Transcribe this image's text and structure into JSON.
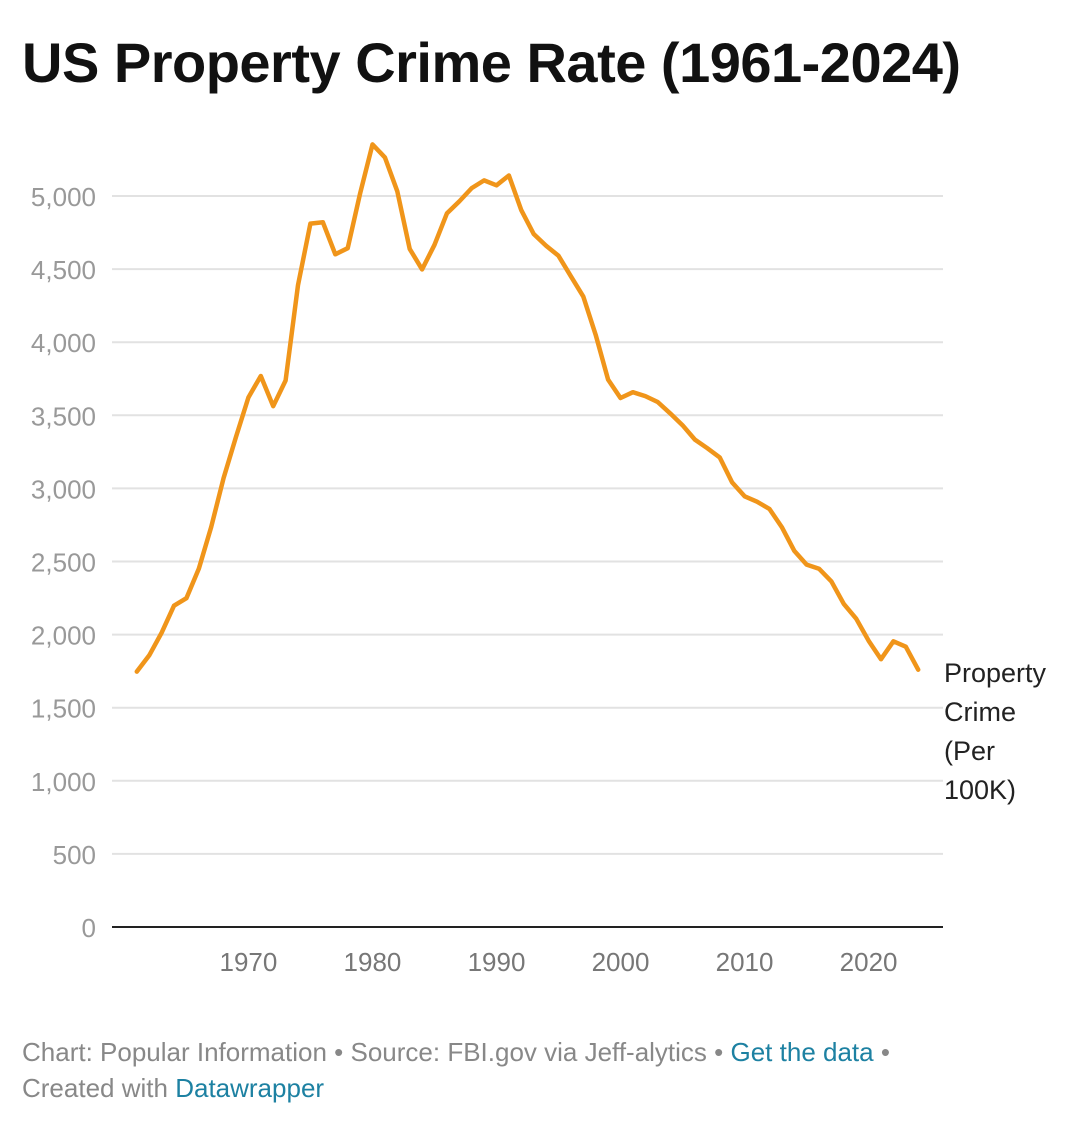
{
  "title": "US Property Crime Rate (1961-2024)",
  "colors": {
    "line": "#f0951a",
    "grid": "#e2e2e2",
    "axis": "#222222",
    "tick": "#999999",
    "label": "#222222"
  },
  "chart_data": {
    "type": "line",
    "title": "US Property Crime Rate (1961-2024)",
    "xlabel": "",
    "ylabel": "",
    "xlim": [
      1959,
      2026
    ],
    "ylim": [
      0,
      5000
    ],
    "xticks": [
      1970,
      1980,
      1990,
      2000,
      2010,
      2020
    ],
    "yticks": [
      0,
      500,
      1000,
      1500,
      2000,
      2500,
      3000,
      3500,
      4000,
      4500,
      5000
    ],
    "ytick_labels": [
      "0",
      "500",
      "1,000",
      "1,500",
      "2,000",
      "2,500",
      "3,000",
      "3,500",
      "4,000",
      "4,500",
      "5,000"
    ],
    "grid": true,
    "series": [
      {
        "name": "Property Crime (Per 100K)",
        "label_lines": [
          "Property",
          "Crime",
          "(Per",
          "100K)"
        ],
        "x": [
          1961,
          1962,
          1963,
          1964,
          1965,
          1966,
          1967,
          1968,
          1969,
          1970,
          1971,
          1972,
          1973,
          1974,
          1975,
          1976,
          1977,
          1978,
          1979,
          1980,
          1981,
          1982,
          1983,
          1984,
          1985,
          1986,
          1987,
          1988,
          1989,
          1990,
          1991,
          1992,
          1993,
          1994,
          1995,
          1996,
          1997,
          1998,
          1999,
          2000,
          2001,
          2002,
          2003,
          2004,
          2005,
          2006,
          2007,
          2008,
          2009,
          2010,
          2011,
          2012,
          2013,
          2014,
          2015,
          2016,
          2017,
          2018,
          2019,
          2020,
          2021,
          2022,
          2023,
          2024
        ],
        "values": [
          1747,
          1858,
          2012,
          2198,
          2249,
          2450,
          2736,
          3071,
          3352,
          3622,
          3769,
          3562,
          3738,
          4390,
          4811,
          4820,
          4601,
          4643,
          5017,
          5353,
          5264,
          5032,
          4638,
          4498,
          4666,
          4881,
          4963,
          5054,
          5107,
          5073,
          5140,
          4903,
          4740,
          4660,
          4591,
          4451,
          4312,
          4050,
          3744,
          3618,
          3658,
          3631,
          3591,
          3514,
          3432,
          3334,
          3275,
          3212,
          3041,
          2946,
          2909,
          2860,
          2735,
          2574,
          2479,
          2451,
          2364,
          2210,
          2109,
          1958,
          1832,
          1954,
          1917,
          1760
        ]
      }
    ]
  },
  "footer": {
    "chart_prefix": "Chart: Popular Information",
    "separator": " • ",
    "source": "Source: FBI.gov via Jeff-alytics",
    "data_link": "Get the data",
    "created_prefix": "Created with",
    "datawrapper_link": "Datawrapper"
  }
}
